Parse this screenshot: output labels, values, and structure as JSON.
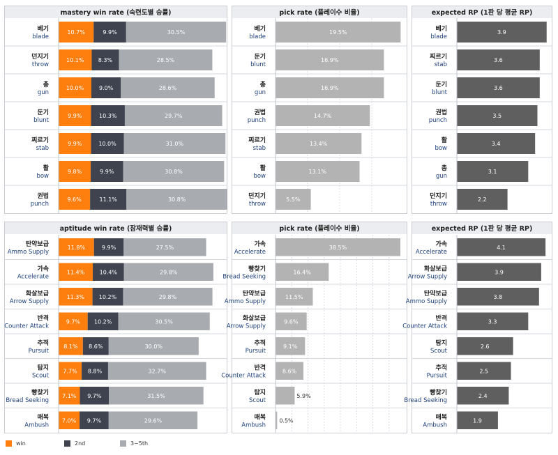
{
  "colors": {
    "win": "#ff7f0e",
    "second": "#3f4350",
    "rest": "#a8abb0",
    "pick": "#b3b3b3",
    "rp": "#5f5f5f",
    "header_bg": "#ebedf0",
    "label_sub": "#1c3f7a"
  },
  "legend": [
    {
      "label": "win",
      "color": "#ff7f0e"
    },
    {
      "label": "2nd",
      "color": "#3f4350"
    },
    {
      "label": "3~5th",
      "color": "#a8abb0"
    }
  ],
  "chart_data": [
    {
      "type": "bar",
      "stacked": true,
      "title": "mastery win rate (숙련도별 승률)",
      "categories": [
        {
          "ko": "베기",
          "en": "blade"
        },
        {
          "ko": "던지기",
          "en": "throw"
        },
        {
          "ko": "총",
          "en": "gun"
        },
        {
          "ko": "둔기",
          "en": "blunt"
        },
        {
          "ko": "찌르기",
          "en": "stab"
        },
        {
          "ko": "활",
          "en": "bow"
        },
        {
          "ko": "권법",
          "en": "punch"
        }
      ],
      "series": [
        {
          "name": "win",
          "values": [
            10.7,
            10.1,
            10.0,
            9.9,
            9.9,
            9.8,
            9.6
          ]
        },
        {
          "name": "2nd",
          "values": [
            9.9,
            8.3,
            9.0,
            10.3,
            10.0,
            9.9,
            11.1
          ]
        },
        {
          "name": "3~5th",
          "values": [
            30.5,
            28.5,
            28.6,
            29.7,
            31.0,
            30.8,
            30.8
          ]
        }
      ],
      "value_suffix": "%",
      "grid": false
    },
    {
      "type": "bar",
      "title": "pick rate (플레이수 비율)",
      "categories": [
        {
          "ko": "베기",
          "en": "blade"
        },
        {
          "ko": "둔기",
          "en": "blunt"
        },
        {
          "ko": "총",
          "en": "gun"
        },
        {
          "ko": "권법",
          "en": "punch"
        },
        {
          "ko": "찌르기",
          "en": "stab"
        },
        {
          "ko": "활",
          "en": "bow"
        },
        {
          "ko": "던지기",
          "en": "throw"
        }
      ],
      "values": [
        19.5,
        16.9,
        16.9,
        14.7,
        13.4,
        13.1,
        5.5
      ],
      "value_suffix": "%",
      "grid": true
    },
    {
      "type": "bar",
      "title": "expected RP (1판 당 평균 RP)",
      "categories": [
        {
          "ko": "베기",
          "en": "blade"
        },
        {
          "ko": "찌르기",
          "en": "stab"
        },
        {
          "ko": "둔기",
          "en": "blunt"
        },
        {
          "ko": "권법",
          "en": "punch"
        },
        {
          "ko": "활",
          "en": "bow"
        },
        {
          "ko": "총",
          "en": "gun"
        },
        {
          "ko": "던지기",
          "en": "throw"
        }
      ],
      "values": [
        3.9,
        3.6,
        3.6,
        3.5,
        3.4,
        3.1,
        2.2
      ],
      "value_suffix": "",
      "grid": false
    },
    {
      "type": "bar",
      "stacked": true,
      "title": "aptitude win rate (잠재력별 승률)",
      "categories": [
        {
          "ko": "탄약보급",
          "en": "Ammo Supply"
        },
        {
          "ko": "가속",
          "en": "Accelerate"
        },
        {
          "ko": "화살보급",
          "en": "Arrow Supply"
        },
        {
          "ko": "반격",
          "en": "Counter Attack"
        },
        {
          "ko": "추적",
          "en": "Pursuit"
        },
        {
          "ko": "탐지",
          "en": "Scout"
        },
        {
          "ko": "빵찾기",
          "en": "Bread Seeking"
        },
        {
          "ko": "매복",
          "en": "Ambush"
        }
      ],
      "series": [
        {
          "name": "win",
          "values": [
            11.8,
            11.4,
            11.3,
            9.7,
            8.1,
            7.7,
            7.1,
            7.0
          ]
        },
        {
          "name": "2nd",
          "values": [
            9.9,
            10.4,
            10.2,
            10.2,
            8.6,
            8.8,
            9.7,
            9.7
          ]
        },
        {
          "name": "3~5th",
          "values": [
            27.5,
            29.8,
            29.8,
            30.5,
            30.0,
            32.7,
            31.5,
            29.6
          ]
        }
      ],
      "value_suffix": "%",
      "grid": false
    },
    {
      "type": "bar",
      "title": "pick rate (플레이수 비율)",
      "categories": [
        {
          "ko": "가속",
          "en": "Accelerate"
        },
        {
          "ko": "빵찾기",
          "en": "Bread Seeking"
        },
        {
          "ko": "탄약보급",
          "en": "Ammo Supply"
        },
        {
          "ko": "화살보급",
          "en": "Arrow Supply"
        },
        {
          "ko": "추적",
          "en": "Pursuit"
        },
        {
          "ko": "반격",
          "en": "Counter Attack"
        },
        {
          "ko": "탐지",
          "en": "Scout"
        },
        {
          "ko": "매복",
          "en": "Ambush"
        }
      ],
      "values": [
        38.5,
        16.4,
        11.5,
        9.6,
        9.1,
        8.6,
        5.9,
        0.5
      ],
      "value_suffix": "%",
      "grid": true
    },
    {
      "type": "bar",
      "title": "expected RP (1판 당 평균 RP)",
      "categories": [
        {
          "ko": "가속",
          "en": "Accelerate"
        },
        {
          "ko": "화살보급",
          "en": "Arrow Supply"
        },
        {
          "ko": "탄약보급",
          "en": "Ammo Supply"
        },
        {
          "ko": "반격",
          "en": "Counter Attack"
        },
        {
          "ko": "탐지",
          "en": "Scout"
        },
        {
          "ko": "추적",
          "en": "Pursuit"
        },
        {
          "ko": "빵찾기",
          "en": "Bread Seeking"
        },
        {
          "ko": "매복",
          "en": "Ambush"
        }
      ],
      "values": [
        4.1,
        3.9,
        3.8,
        3.3,
        2.6,
        2.5,
        2.4,
        1.9
      ],
      "value_suffix": "",
      "grid": false
    }
  ]
}
